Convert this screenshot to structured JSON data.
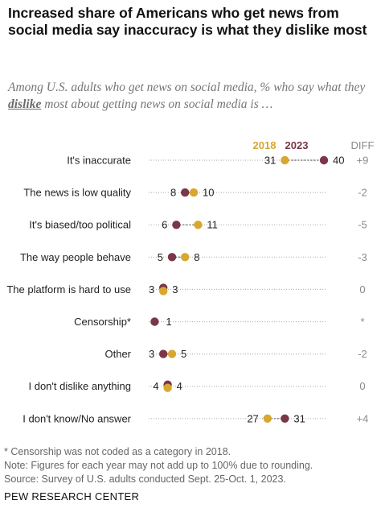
{
  "title": "Increased share of Americans who get news from social media say inaccuracy is what they dislike most",
  "subtitle": {
    "before": "Among U.S. adults who get news on social media, % who say what they ",
    "keyword": "dislike",
    "after": " most about getting news on social media is …"
  },
  "chart_data": {
    "type": "scatter",
    "variant": "dot-plot",
    "categories": [
      "It's inaccurate",
      "The news is low quality",
      "It's biased/too political",
      "The way people behave",
      "The platform is hard to use",
      "Censorship*",
      "Other",
      "I don't dislike anything",
      "I don't know/No answer"
    ],
    "series": [
      {
        "name": "2018",
        "color": "#d7a730",
        "values": [
          31,
          10,
          11,
          8,
          3,
          null,
          5,
          4,
          27
        ]
      },
      {
        "name": "2023",
        "color": "#7b3647",
        "values": [
          40,
          8,
          6,
          5,
          3,
          1,
          3,
          4,
          31
        ]
      }
    ],
    "diff_header": "DIFF",
    "diff": [
      "+9",
      "-2",
      "-5",
      "-3",
      "0",
      "*",
      "-2",
      "0",
      "+4"
    ],
    "xlim": [
      0,
      40
    ],
    "grid": false,
    "legend_position": "top"
  },
  "footnotes": [
    "* Censorship was not coded as a category in 2018.",
    "Note: Figures for each year may not add up to 100% due to rounding.",
    "Source: Survey of U.S. adults conducted Sept. 25-Oct. 1, 2023."
  ],
  "source_org": "PEW RESEARCH CENTER"
}
